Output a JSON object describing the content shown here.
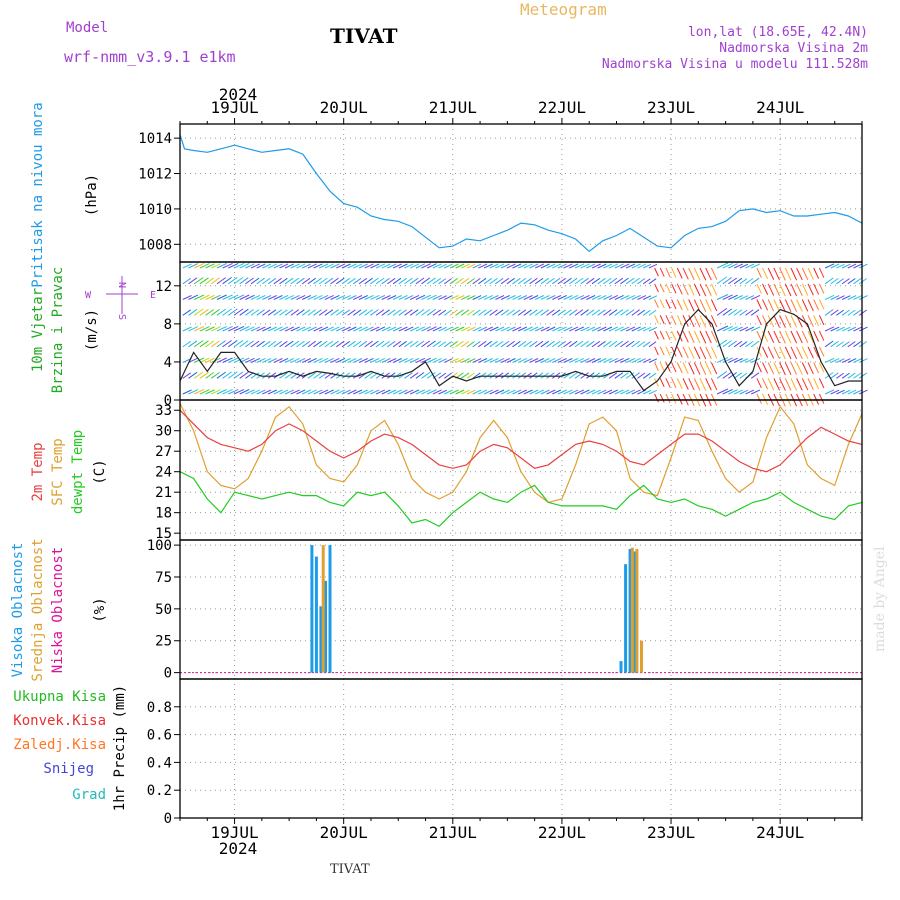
{
  "header": {
    "model_label": "Model",
    "model_name": "wrf-nmm_v3.9.1  e1km",
    "station": "TIVAT",
    "product": "Meteogram",
    "location": "lon,lat (18.65E, 42.4N)",
    "altitude": "Nadmorska Visina 2m",
    "model_altitude": "Nadmorska Visina u modelu 111.528m",
    "footer_station": "TIVAT",
    "credit": "made by Angel"
  },
  "colors": {
    "pressure": "#1e9be8",
    "temp2m": "#e84040",
    "sfc_temp": "#e0a030",
    "dewpt": "#22cc22",
    "high_cloud": "#1e9be8",
    "mid_cloud": "#e0a030",
    "low_cloud": "#dd1199",
    "total_precip": "#22bb22",
    "conv_precip": "#e83030",
    "frz_precip": "#ff7722",
    "snow": "#4444dd",
    "hail": "#22bbbb",
    "wind_label": "#22aa22",
    "label_purple": "#a040d0"
  },
  "time_axis": {
    "year": "2024",
    "days": [
      "19JUL",
      "20JUL",
      "21JUL",
      "22JUL",
      "23JUL",
      "24JUL"
    ]
  },
  "panels": {
    "pressure": {
      "label1": "Pritisak na nivou mora",
      "unit": "(hPa)"
    },
    "wind": {
      "label1": "10m Vjetar",
      "label2": "Brzina i Pravac",
      "unit": "(m/s)",
      "compass_w": "W",
      "compass_e": "E",
      "compass_n": "N",
      "compass_s": "S"
    },
    "temp": {
      "label1": "2m Temp",
      "label2": "SFC Temp",
      "label3": "dewpt Temp",
      "unit": "(C)"
    },
    "cloud": {
      "label1": "Visoka Oblacnost",
      "label2": "Srednja Oblacnost",
      "label3": "Niska Oblacnost",
      "unit": "(%)"
    },
    "precip": {
      "legend": [
        "Ukupna Kisa",
        "Konvek.Kisa",
        "Zaledj.Kisa",
        "Snijeg",
        "Grad"
      ],
      "unit": "1hr Precip (mm)"
    }
  },
  "chart_data": [
    {
      "type": "line",
      "panel": "pressure",
      "x_unit": "hours from 18 JUL 12 UTC",
      "ylim": [
        1007,
        1014.8
      ],
      "yticks": [
        "1008",
        "1010",
        "1012",
        "1014"
      ],
      "series": [
        {
          "x": [
            0,
            1,
            3,
            6,
            9,
            12,
            15,
            18,
            21,
            24,
            27,
            30,
            33,
            36,
            39,
            42,
            45,
            48,
            51,
            54,
            57,
            60,
            63,
            66,
            69,
            72,
            75,
            78,
            81,
            84,
            87,
            90,
            93,
            96,
            99,
            102,
            105,
            108,
            111,
            114,
            117,
            120,
            123,
            126,
            129,
            132,
            135,
            138,
            141,
            144,
            147,
            150
          ],
          "values": [
            1014.2,
            1013.4,
            1013.3,
            1013.2,
            1013.4,
            1013.6,
            1013.4,
            1013.2,
            1013.3,
            1013.4,
            1013.1,
            1012.0,
            1011.0,
            1010.3,
            1010.1,
            1009.6,
            1009.4,
            1009.3,
            1009.0,
            1008.4,
            1007.8,
            1007.9,
            1008.3,
            1008.2,
            1008.5,
            1008.8,
            1009.2,
            1009.1,
            1008.8,
            1008.6,
            1008.3,
            1007.6,
            1008.2,
            1008.5,
            1008.9,
            1008.4,
            1007.9,
            1007.8,
            1008.5,
            1008.9,
            1009.0,
            1009.3,
            1009.9,
            1010.0,
            1009.8,
            1009.9,
            1009.6,
            1009.6,
            1009.7,
            1009.8,
            1009.6,
            1009.2
          ]
        }
      ]
    },
    {
      "type": "line",
      "panel": "wind",
      "ylim": [
        0,
        14.5
      ],
      "yticks": [
        "0",
        "4",
        "8",
        "12"
      ],
      "series": [
        {
          "name": "speed",
          "x": [
            0,
            3,
            6,
            9,
            12,
            15,
            18,
            21,
            24,
            27,
            30,
            33,
            36,
            39,
            42,
            45,
            48,
            51,
            54,
            57,
            60,
            63,
            66,
            69,
            72,
            75,
            78,
            81,
            84,
            87,
            90,
            93,
            96,
            99,
            102,
            105,
            108,
            111,
            114,
            117,
            120,
            123,
            126,
            129,
            132,
            135,
            138,
            141,
            144,
            147,
            150
          ],
          "values": [
            2,
            5,
            3,
            5,
            5,
            3,
            2.5,
            2.5,
            3,
            2.5,
            3,
            2.8,
            2.5,
            2.5,
            3,
            2.5,
            2.5,
            3,
            4,
            1.5,
            2.5,
            2,
            2.5,
            2.5,
            2.5,
            2.5,
            2.5,
            2.5,
            2.5,
            3,
            2.5,
            2.5,
            3,
            3,
            1,
            2,
            4,
            8,
            9.5,
            8,
            4,
            1.5,
            3,
            8,
            9.5,
            9,
            8,
            4,
            1.5,
            2,
            2
          ]
        }
      ]
    },
    {
      "type": "line",
      "panel": "temp",
      "ylim": [
        14,
        34.5
      ],
      "yticks": [
        "15",
        "18",
        "21",
        "24",
        "27",
        "30",
        "33"
      ],
      "series": [
        {
          "name": "2m Temp",
          "x": [
            0,
            3,
            6,
            9,
            12,
            15,
            18,
            21,
            24,
            27,
            30,
            33,
            36,
            39,
            42,
            45,
            48,
            51,
            54,
            57,
            60,
            63,
            66,
            69,
            72,
            75,
            78,
            81,
            84,
            87,
            90,
            93,
            96,
            99,
            102,
            105,
            108,
            111,
            114,
            117,
            120,
            123,
            126,
            129,
            132,
            135,
            138,
            141,
            144,
            147,
            150
          ],
          "values": [
            33,
            31,
            29,
            28,
            27.5,
            27,
            28,
            30,
            31,
            30,
            28.5,
            27,
            26,
            27,
            28.5,
            29.5,
            29,
            28,
            26.5,
            25,
            24.5,
            25,
            27,
            28,
            27.5,
            26,
            24.5,
            25,
            26.5,
            28,
            28.5,
            28,
            27,
            25.5,
            25,
            26.5,
            28,
            29.5,
            29.5,
            28.5,
            27,
            25.5,
            24.5,
            24,
            25,
            27,
            29,
            30.5,
            29.5,
            28.5,
            28
          ]
        },
        {
          "name": "SFC Temp",
          "x": [
            0,
            3,
            6,
            9,
            12,
            15,
            18,
            21,
            24,
            27,
            30,
            33,
            36,
            39,
            42,
            45,
            48,
            51,
            54,
            57,
            60,
            63,
            66,
            69,
            72,
            75,
            78,
            81,
            84,
            87,
            90,
            93,
            96,
            99,
            102,
            105,
            108,
            111,
            114,
            117,
            120,
            123,
            126,
            129,
            132,
            135,
            138,
            141,
            144,
            147,
            150
          ],
          "values": [
            34,
            30,
            24,
            22,
            21.5,
            23,
            27,
            32,
            33.5,
            31,
            25,
            23,
            22.5,
            25,
            30,
            31.5,
            28,
            23,
            21,
            20,
            21,
            24,
            29,
            31.5,
            29,
            24,
            21,
            19.5,
            20,
            25,
            31,
            32,
            30,
            23,
            21,
            20.5,
            26,
            32,
            31.5,
            27,
            23,
            21,
            22.5,
            29,
            33.5,
            31,
            25,
            23,
            22,
            28,
            32.5
          ]
        },
        {
          "name": "dewpt Temp",
          "x": [
            0,
            3,
            6,
            9,
            12,
            15,
            18,
            21,
            24,
            27,
            30,
            33,
            36,
            39,
            42,
            45,
            48,
            51,
            54,
            57,
            60,
            63,
            66,
            69,
            72,
            75,
            78,
            81,
            84,
            87,
            90,
            93,
            96,
            99,
            102,
            105,
            108,
            111,
            114,
            117,
            120,
            123,
            126,
            129,
            132,
            135,
            138,
            141,
            144,
            147,
            150
          ],
          "values": [
            24,
            23,
            20,
            18,
            21,
            20.5,
            20,
            20.5,
            21,
            20.5,
            20.5,
            19.5,
            19,
            21,
            20.5,
            21,
            19,
            16.5,
            17,
            16,
            18,
            19.5,
            21,
            20,
            19.5,
            21,
            22,
            19.5,
            19,
            19,
            19,
            19,
            18.5,
            20.5,
            22,
            20,
            19.5,
            20,
            19,
            18.5,
            17.5,
            18.5,
            19.5,
            20,
            21,
            19.5,
            18.5,
            17.5,
            17,
            19,
            19.5
          ]
        }
      ]
    },
    {
      "type": "bar",
      "panel": "cloud",
      "ylim": [
        -5,
        104
      ],
      "yticks": [
        "0",
        "25",
        "50",
        "75",
        "100"
      ],
      "series": [
        {
          "name": "Visoka Oblacnost",
          "x": [
            29,
            30,
            31,
            32,
            33,
            97,
            98,
            99,
            100
          ],
          "values": [
            100,
            91,
            52,
            72,
            100,
            9,
            85,
            97,
            95
          ]
        },
        {
          "name": "Srednja Oblacnost",
          "x": [
            31.5,
            99.5,
            100.5,
            101.5
          ],
          "values": [
            100,
            98,
            97,
            25
          ]
        }
      ]
    },
    {
      "type": "bar",
      "panel": "precip",
      "ylim": [
        0,
        1.0
      ],
      "yticks": [
        "0",
        "0.2",
        "0.4",
        "0.6",
        "0.8"
      ],
      "series": [
        {
          "name": "Ukupna Kisa",
          "x": [],
          "values": []
        }
      ]
    }
  ]
}
